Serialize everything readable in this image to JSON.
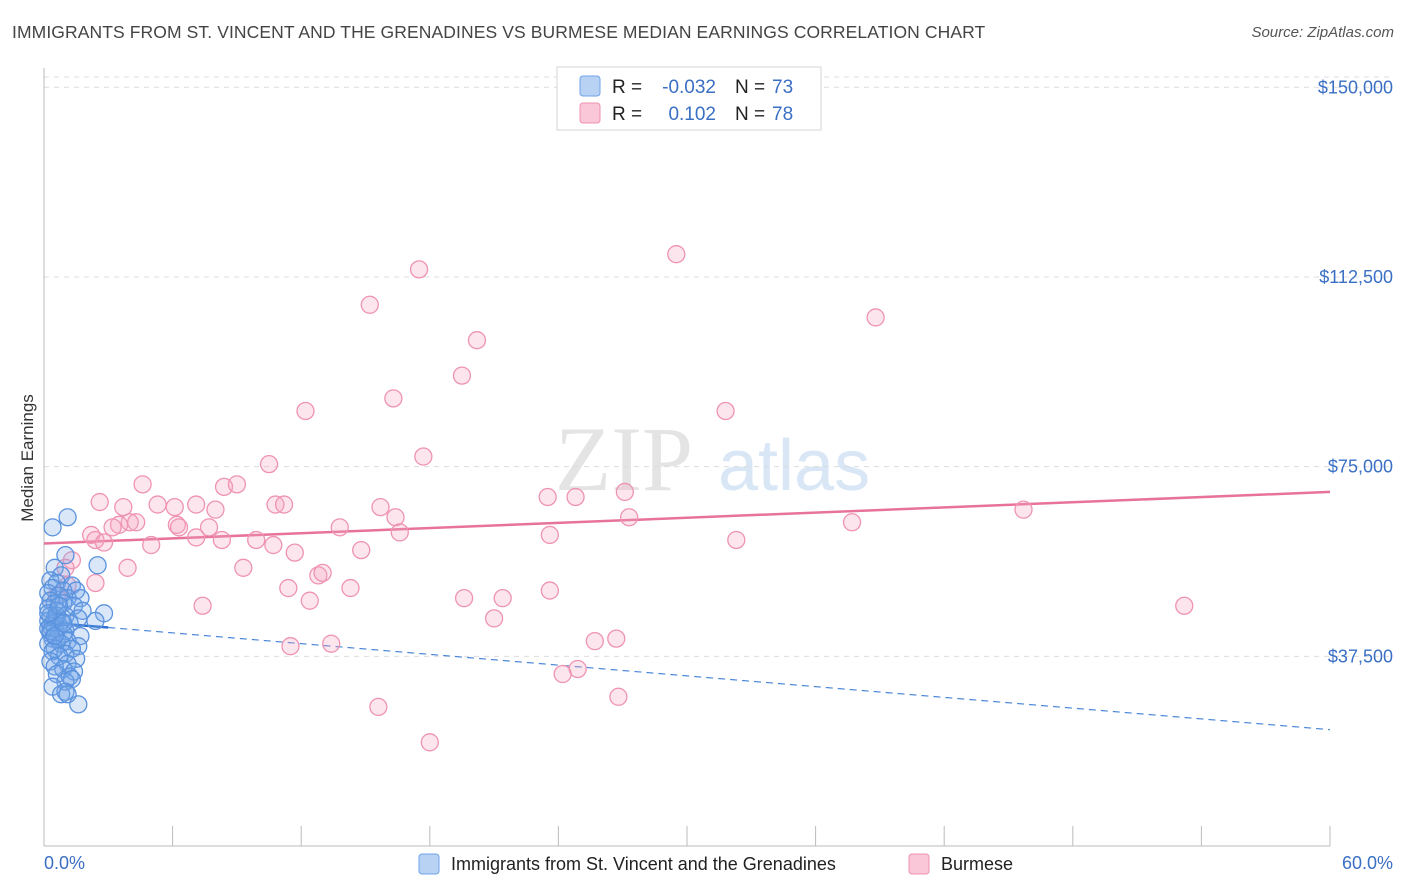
{
  "header": {
    "title": "IMMIGRANTS FROM ST. VINCENT AND THE GRENADINES VS BURMESE MEDIAN EARNINGS CORRELATION CHART",
    "source": "Source: ZipAtlas.com"
  },
  "watermark": {
    "part1": "ZIP",
    "part2": "atlas"
  },
  "legend": {
    "rows": [
      {
        "r_label": "R =",
        "r_value": "-0.032",
        "n_label": "N =",
        "n_value": "73",
        "color": "#6fa3e8"
      },
      {
        "r_label": "R =",
        "r_value": "0.102",
        "n_label": "N =",
        "n_value": "78",
        "color": "#f08fb0"
      }
    ]
  },
  "bottom_legend": {
    "items": [
      {
        "label": "Immigrants from St. Vincent and the Grenadines",
        "color": "#6fa3e8"
      },
      {
        "label": "Burmese",
        "color": "#f08fb0"
      }
    ]
  },
  "chart_data": {
    "type": "scatter",
    "title": "IMMIGRANTS FROM ST. VINCENT AND THE GRENADINES VS BURMESE MEDIAN EARNINGS CORRELATION CHART",
    "xlabel": "",
    "ylabel": "Median Earnings",
    "xlim": [
      0,
      60
    ],
    "ylim": [
      0,
      155000
    ],
    "x_tick_labels": [
      "0.0%",
      "60.0%"
    ],
    "y_ticks": [
      37500,
      75000,
      112500,
      150000
    ],
    "y_tick_labels": [
      "$37,500",
      "$75,000",
      "$112,500",
      "$150,000"
    ],
    "grid": true,
    "legend_position": "top-center",
    "series": [
      {
        "name": "Immigrants from St. Vincent and the Grenadines",
        "color": "#6fa3e8",
        "trend": {
          "solid": [
            [
              0,
              44200
            ],
            [
              3,
              43200
            ]
          ],
          "dashed": [
            [
              3,
              43200
            ],
            [
              60,
              23000
            ]
          ]
        },
        "points": [
          [
            0.4,
            63000
          ],
          [
            1.1,
            65000
          ],
          [
            1.0,
            57500
          ],
          [
            2.5,
            55500
          ],
          [
            0.5,
            55000
          ],
          [
            0.8,
            53500
          ],
          [
            0.3,
            52500
          ],
          [
            0.6,
            52000
          ],
          [
            1.3,
            51500
          ],
          [
            0.4,
            51000
          ],
          [
            0.9,
            50500
          ],
          [
            1.5,
            50500
          ],
          [
            0.2,
            50000
          ],
          [
            0.7,
            49500
          ],
          [
            1.1,
            49000
          ],
          [
            1.7,
            49000
          ],
          [
            0.3,
            48500
          ],
          [
            0.5,
            48000
          ],
          [
            0.9,
            48000
          ],
          [
            1.4,
            47500
          ],
          [
            0.2,
            47000
          ],
          [
            0.6,
            46500
          ],
          [
            1.8,
            46500
          ],
          [
            2.8,
            46000
          ],
          [
            0.3,
            45500
          ],
          [
            1.0,
            45500
          ],
          [
            0.5,
            45000
          ],
          [
            1.6,
            45000
          ],
          [
            0.2,
            44500
          ],
          [
            0.8,
            44500
          ],
          [
            2.4,
            44500
          ],
          [
            0.4,
            44000
          ],
          [
            1.2,
            44000
          ],
          [
            0.3,
            43500
          ],
          [
            0.7,
            43500
          ],
          [
            0.2,
            43000
          ],
          [
            0.5,
            43000
          ],
          [
            1.0,
            42500
          ],
          [
            0.3,
            42000
          ],
          [
            0.9,
            42000
          ],
          [
            1.7,
            41500
          ],
          [
            0.4,
            41000
          ],
          [
            0.6,
            41000
          ],
          [
            1.1,
            40500
          ],
          [
            0.2,
            40000
          ],
          [
            0.8,
            40000
          ],
          [
            1.6,
            39500
          ],
          [
            0.5,
            39000
          ],
          [
            1.3,
            39000
          ],
          [
            0.4,
            38500
          ],
          [
            1.0,
            38000
          ],
          [
            0.7,
            37500
          ],
          [
            1.5,
            37000
          ],
          [
            0.3,
            36500
          ],
          [
            1.1,
            36000
          ],
          [
            0.5,
            35500
          ],
          [
            0.9,
            35000
          ],
          [
            1.4,
            34500
          ],
          [
            0.6,
            34000
          ],
          [
            1.2,
            33500
          ],
          [
            1.3,
            33000
          ],
          [
            1.0,
            32500
          ],
          [
            0.4,
            31500
          ],
          [
            1.0,
            30500
          ],
          [
            0.8,
            30000
          ],
          [
            1.1,
            30000
          ],
          [
            1.6,
            28000
          ],
          [
            0.3,
            42500
          ],
          [
            0.6,
            45500
          ],
          [
            0.2,
            46000
          ],
          [
            0.9,
            44000
          ],
          [
            0.5,
            41500
          ],
          [
            0.7,
            47500
          ]
        ]
      },
      {
        "name": "Burmese",
        "color": "#f08fb0",
        "trend": {
          "solid": [
            [
              0,
              59800
            ],
            [
              60,
              70000
            ]
          ]
        },
        "points": [
          [
            29.5,
            117000
          ],
          [
            17.5,
            114000
          ],
          [
            15.2,
            107000
          ],
          [
            38.8,
            104500
          ],
          [
            20.2,
            100000
          ],
          [
            19.5,
            93000
          ],
          [
            16.3,
            88500
          ],
          [
            12.2,
            86000
          ],
          [
            31.8,
            86000
          ],
          [
            17.7,
            77000
          ],
          [
            10.5,
            75500
          ],
          [
            4.6,
            71500
          ],
          [
            8.4,
            71000
          ],
          [
            9.0,
            71500
          ],
          [
            27.1,
            70000
          ],
          [
            23.5,
            69000
          ],
          [
            24.8,
            69000
          ],
          [
            2.6,
            68000
          ],
          [
            7.1,
            67500
          ],
          [
            10.8,
            67500
          ],
          [
            3.7,
            67000
          ],
          [
            5.3,
            67500
          ],
          [
            6.1,
            67000
          ],
          [
            8.0,
            66500
          ],
          [
            11.2,
            67500
          ],
          [
            15.7,
            67000
          ],
          [
            45.7,
            66500
          ],
          [
            4.0,
            64000
          ],
          [
            3.5,
            63500
          ],
          [
            4.3,
            64000
          ],
          [
            6.2,
            63500
          ],
          [
            16.4,
            65000
          ],
          [
            27.3,
            65000
          ],
          [
            37.7,
            64000
          ],
          [
            3.2,
            63000
          ],
          [
            6.3,
            63000
          ],
          [
            7.7,
            63000
          ],
          [
            13.8,
            63000
          ],
          [
            2.2,
            61500
          ],
          [
            2.4,
            60500
          ],
          [
            16.6,
            62000
          ],
          [
            23.6,
            61500
          ],
          [
            7.1,
            61000
          ],
          [
            8.3,
            60500
          ],
          [
            5.0,
            59500
          ],
          [
            9.9,
            60500
          ],
          [
            32.3,
            60500
          ],
          [
            2.8,
            60000
          ],
          [
            10.7,
            59500
          ],
          [
            14.8,
            58500
          ],
          [
            11.7,
            58000
          ],
          [
            1.3,
            56500
          ],
          [
            3.9,
            55000
          ],
          [
            9.3,
            55000
          ],
          [
            12.8,
            53500
          ],
          [
            13.0,
            54000
          ],
          [
            2.4,
            52000
          ],
          [
            1.1,
            51500
          ],
          [
            11.4,
            51000
          ],
          [
            14.3,
            51000
          ],
          [
            23.6,
            50500
          ],
          [
            19.6,
            49000
          ],
          [
            12.4,
            48500
          ],
          [
            21.4,
            49000
          ],
          [
            7.4,
            47500
          ],
          [
            53.2,
            47500
          ],
          [
            21.0,
            45000
          ],
          [
            26.7,
            41000
          ],
          [
            25.7,
            40500
          ],
          [
            11.5,
            39500
          ],
          [
            13.4,
            40000
          ],
          [
            24.9,
            35000
          ],
          [
            24.2,
            34000
          ],
          [
            26.8,
            29500
          ],
          [
            15.6,
            27500
          ],
          [
            18.0,
            20500
          ],
          [
            1.0,
            55000
          ],
          [
            0.6,
            49500
          ]
        ]
      }
    ]
  }
}
